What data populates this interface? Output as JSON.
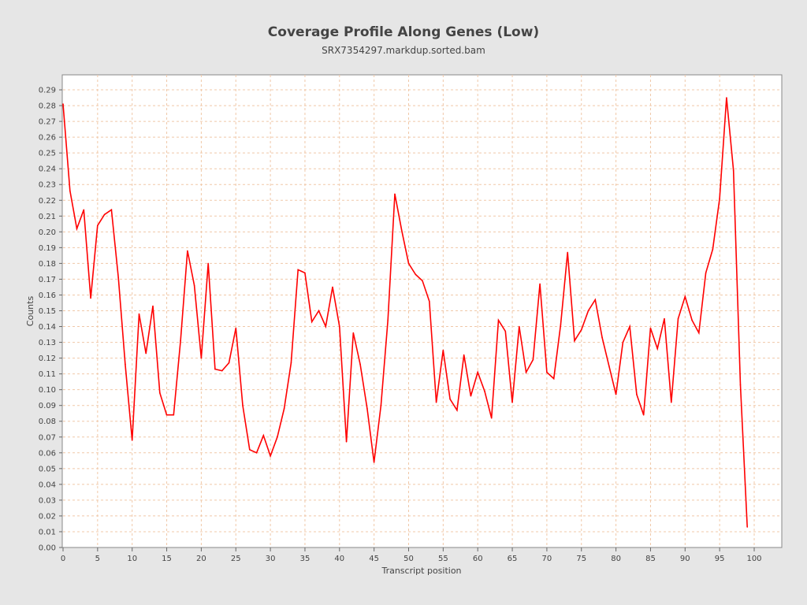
{
  "chart_data": {
    "type": "line",
    "title": "Coverage Profile Along Genes (Low)",
    "subtitle": "SRX7354297.markdup.sorted.bam",
    "xlabel": "Transcript position",
    "ylabel": "Counts",
    "xlim": [
      0,
      104
    ],
    "ylim": [
      0,
      0.2995
    ],
    "grid": true,
    "x_ticks": [
      "0",
      "5",
      "10",
      "15",
      "20",
      "25",
      "30",
      "35",
      "40",
      "45",
      "50",
      "55",
      "60",
      "65",
      "70",
      "75",
      "80",
      "85",
      "90",
      "95",
      "100"
    ],
    "y_ticks": [
      "0.00",
      "0.01",
      "0.02",
      "0.03",
      "0.04",
      "0.05",
      "0.06",
      "0.07",
      "0.08",
      "0.09",
      "0.10",
      "0.11",
      "0.12",
      "0.13",
      "0.14",
      "0.15",
      "0.16",
      "0.17",
      "0.18",
      "0.19",
      "0.20",
      "0.21",
      "0.22",
      "0.23",
      "0.24",
      "0.25",
      "0.26",
      "0.27",
      "0.28",
      "0.29"
    ],
    "series": [
      {
        "name": "coverage",
        "color": "#ff0000",
        "x_start": 0,
        "values": [
          0.281,
          0.226,
          0.202,
          0.214,
          0.158,
          0.204,
          0.211,
          0.214,
          0.171,
          0.116,
          0.068,
          0.148,
          0.123,
          0.153,
          0.098,
          0.084,
          0.084,
          0.131,
          0.188,
          0.166,
          0.12,
          0.18,
          0.113,
          0.112,
          0.117,
          0.139,
          0.09,
          0.062,
          0.06,
          0.071,
          0.058,
          0.07,
          0.088,
          0.117,
          0.176,
          0.174,
          0.143,
          0.15,
          0.14,
          0.165,
          0.14,
          0.067,
          0.136,
          0.116,
          0.088,
          0.054,
          0.09,
          0.144,
          0.224,
          0.201,
          0.18,
          0.173,
          0.169,
          0.156,
          0.092,
          0.125,
          0.094,
          0.087,
          0.122,
          0.096,
          0.111,
          0.099,
          0.082,
          0.144,
          0.137,
          0.092,
          0.14,
          0.111,
          0.119,
          0.167,
          0.111,
          0.107,
          0.141,
          0.187,
          0.131,
          0.138,
          0.15,
          0.157,
          0.133,
          0.115,
          0.097,
          0.13,
          0.14,
          0.097,
          0.084,
          0.139,
          0.126,
          0.145,
          0.092,
          0.145,
          0.159,
          0.144,
          0.136,
          0.174,
          0.189,
          0.221,
          0.285,
          0.239,
          0.103,
          0.013
        ]
      }
    ]
  }
}
